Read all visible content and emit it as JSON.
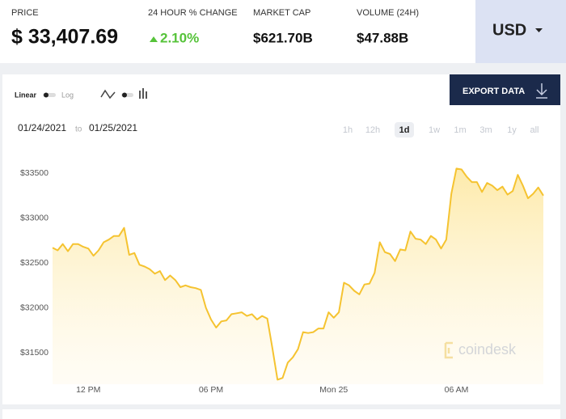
{
  "header": {
    "stats": [
      {
        "label": "PRICE",
        "value": "$ 33,407.69"
      },
      {
        "label": "24 HOUR % CHANGE",
        "value": "2.10%"
      },
      {
        "label": "MARKET CAP",
        "value": "$621.70B"
      },
      {
        "label": "VOLUME (24H)",
        "value": "$47.88B"
      }
    ],
    "currency": "USD"
  },
  "controls": {
    "scale_options": [
      "Linear",
      "Log"
    ],
    "export": "EXPORT DATA",
    "date_from": "01/24/2021",
    "date_sep": "to",
    "date_to": "01/25/2021",
    "ranges": [
      "1h",
      "12h",
      "1d",
      "1w",
      "1m",
      "3m",
      "1y",
      "all"
    ],
    "active_range": 2
  },
  "chart_data": {
    "type": "area",
    "color": "#f5c330",
    "watermark": "coindesk",
    "x": [
      10.25,
      10.5,
      10.75,
      11,
      11.25,
      11.5,
      11.75,
      12,
      12.25,
      12.5,
      12.75,
      13,
      13.25,
      13.5,
      13.75,
      14,
      14.25,
      14.5,
      14.75,
      15,
      15.25,
      15.5,
      15.75,
      16,
      16.25,
      16.5,
      16.75,
      17,
      17.25,
      17.5,
      17.75,
      18,
      18.25,
      18.5,
      18.75,
      19,
      19.25,
      19.5,
      19.75,
      20,
      20.25,
      20.5,
      20.75,
      21,
      21.25,
      21.5,
      21.75,
      22,
      22.25,
      22.5,
      22.75,
      23,
      23.25,
      23.5,
      23.75,
      24,
      24.25,
      24.5,
      24.75,
      25,
      25.25,
      25.5,
      25.75,
      26,
      26.25,
      26.5,
      26.75,
      27,
      27.25,
      27.5,
      27.75,
      28,
      28.25,
      28.5,
      28.75,
      29,
      29.25,
      29.5,
      29.75,
      30,
      30.25,
      30.5,
      30.75,
      31,
      31.25,
      31.5,
      31.75,
      32,
      32.25,
      32.5,
      32.75,
      33,
      33.25,
      33.5,
      33.75,
      34,
      34.25
    ],
    "values": [
      32670,
      32640,
      32710,
      32630,
      32710,
      32710,
      32680,
      32660,
      32580,
      32640,
      32730,
      32760,
      32800,
      32800,
      32890,
      32590,
      32610,
      32480,
      32460,
      32430,
      32380,
      32410,
      32310,
      32360,
      32310,
      32230,
      32250,
      32230,
      32220,
      32200,
      32000,
      31870,
      31780,
      31850,
      31860,
      31930,
      31940,
      31950,
      31910,
      31930,
      31870,
      31910,
      31880,
      31550,
      31200,
      31220,
      31390,
      31450,
      31540,
      31730,
      31720,
      31730,
      31770,
      31770,
      31950,
      31890,
      31950,
      32280,
      32250,
      32190,
      32150,
      32260,
      32270,
      32390,
      32730,
      32620,
      32600,
      32520,
      32650,
      32640,
      32850,
      32770,
      32760,
      32710,
      32800,
      32760,
      32660,
      32760,
      33270,
      33550,
      33540,
      33460,
      33400,
      33400,
      33290,
      33390,
      33360,
      33310,
      33350,
      33260,
      33300,
      33480,
      33360,
      33220,
      33270,
      33340,
      33250
    ],
    "xlim": [
      10.25,
      34.25
    ],
    "xticks": [
      {
        "value": 12,
        "label": "12 PM"
      },
      {
        "value": 18,
        "label": "06 PM"
      },
      {
        "value": 24,
        "label": "Mon 25"
      },
      {
        "value": 30,
        "label": "06 AM"
      }
    ],
    "ylim": [
      31150,
      33680
    ],
    "yticks": [
      {
        "value": 31500,
        "label": "$31500"
      },
      {
        "value": 32000,
        "label": "$32000"
      },
      {
        "value": 32500,
        "label": "$32500"
      },
      {
        "value": 33000,
        "label": "$33000"
      },
      {
        "value": 33500,
        "label": "$33500"
      }
    ]
  }
}
